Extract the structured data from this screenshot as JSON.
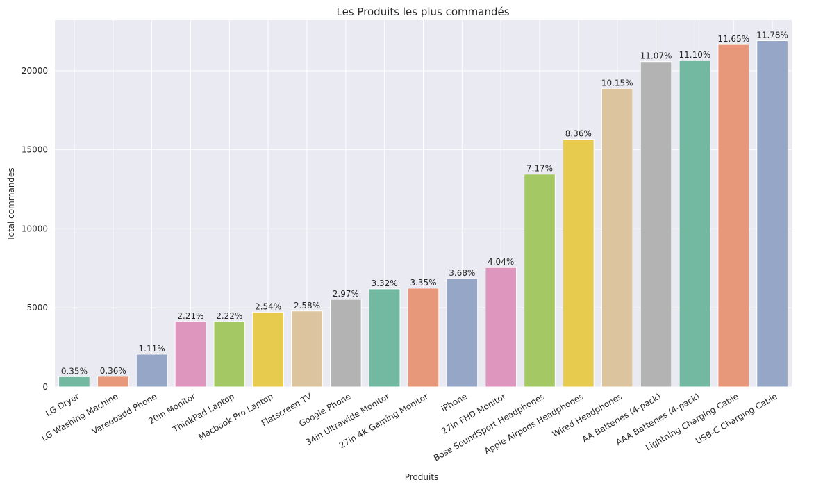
{
  "chart_data": {
    "type": "bar",
    "title": "Les Produits les plus commandés",
    "xlabel": "Produits",
    "ylabel": "Total  commandes",
    "ylim": [
      0,
      23200
    ],
    "yticks": [
      0,
      5000,
      10000,
      15000,
      20000
    ],
    "grid": true,
    "legend": "none",
    "categories": [
      "LG Dryer",
      "LG Washing Machine",
      "Vareebadd Phone",
      "20in Monitor",
      "ThinkPad Laptop",
      "Macbook Pro Laptop",
      "Flatscreen TV",
      "Google Phone",
      "34in Ultrawide Monitor",
      "27in 4K Gaming Monitor",
      "iPhone",
      "27in FHD Monitor",
      "Bose SoundSport Headphones",
      "Apple Airpods Headphones",
      "Wired Headphones",
      "AA Batteries (4-pack)",
      "AAA Batteries (4-pack)",
      "Lightning Charging Cable",
      "USB-C Charging Cable"
    ],
    "values": [
      646,
      666,
      2068,
      4129,
      4130,
      4728,
      4800,
      5532,
      6199,
      6244,
      6849,
      7550,
      13457,
      15661,
      18882,
      20577,
      20641,
      21658,
      21903
    ],
    "labels": [
      "0.35%",
      "0.36%",
      "1.11%",
      "2.21%",
      "2.22%",
      "2.54%",
      "2.58%",
      "2.97%",
      "3.32%",
      "3.35%",
      "3.68%",
      "4.04%",
      "7.17%",
      "8.36%",
      "10.15%",
      "11.07%",
      "11.10%",
      "11.65%",
      "11.78%"
    ],
    "colors": [
      "#73b8a0",
      "#e8987a",
      "#96a6c6",
      "#de96bf",
      "#a3c864",
      "#e7cb4f",
      "#dcc59e",
      "#b3b3b3",
      "#73b8a0",
      "#e8987a",
      "#96a6c6",
      "#de96bf",
      "#a3c864",
      "#e7cb4f",
      "#dcc59e",
      "#b3b3b3",
      "#73b8a0",
      "#e8987a",
      "#96a6c6"
    ],
    "background": "#eaeaf2"
  }
}
